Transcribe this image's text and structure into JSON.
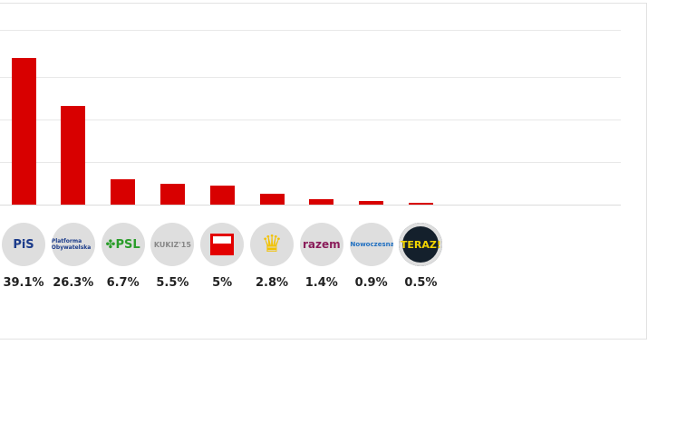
{
  "chart_data": {
    "type": "bar",
    "categories": [
      "PiS",
      "Platforma Obywatelska",
      "PSL",
      "Kukiz'15",
      "SLD",
      "Wolność",
      "razem",
      ".Nowoczesna",
      "TERAZ!"
    ],
    "values": [
      39.1,
      26.3,
      6.7,
      5.5,
      5,
      2.8,
      1.4,
      0.9,
      0.5
    ],
    "labels": [
      "39.1%",
      "26.3%",
      "6.7%",
      "5.5%",
      "5%",
      "2.8%",
      "1.4%",
      "0.9%",
      "0.5%"
    ],
    "grid": true,
    "colors": {
      "bar": "#d80000"
    }
  },
  "logos": [
    {
      "text": "PiS",
      "color": "#1b3b8a",
      "bg": "#dedede"
    },
    {
      "text": "Platforma Obywatelska",
      "color": "#1b3b8a",
      "bg": "#dedede"
    },
    {
      "text": "✤PSL",
      "color": "#2a9d2a",
      "bg": "#dedede"
    },
    {
      "text": "KUKIZ'15",
      "color": "#888888",
      "bg": "#dedede"
    },
    {
      "text": "",
      "color": "#e30000",
      "bg": "#dedede"
    },
    {
      "text": "♛",
      "color": "#f2c200",
      "bg": "#dedede"
    },
    {
      "text": "razem",
      "color": "#8a1c5a",
      "bg": "#dedede"
    },
    {
      "text": ".Nowoczesna",
      "color": "#1f6fc1",
      "bg": "#dedede"
    },
    {
      "text": "TERAZ!",
      "color": "#f2d400",
      "bg": "#14202c"
    }
  ]
}
